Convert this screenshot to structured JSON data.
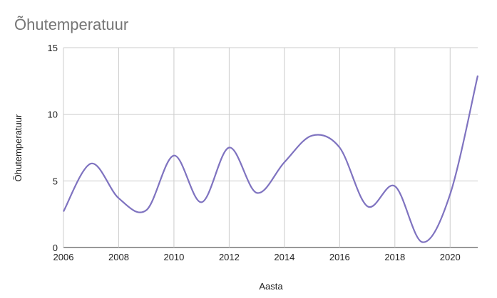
{
  "chart_data": {
    "type": "line",
    "title": "Õhutemperatuur",
    "x_label": "Aasta",
    "y_label": "Õhutemperatuur",
    "x": [
      2006,
      2007,
      2008,
      2009,
      2010,
      2011,
      2012,
      2013,
      2014,
      2015,
      2016,
      2017,
      2018,
      2019,
      2020,
      2021
    ],
    "series": [
      {
        "name": "Õhutemperatuur",
        "color": "#7f73c0",
        "values": [
          2.7,
          6.3,
          3.7,
          2.8,
          6.9,
          3.4,
          7.5,
          4.1,
          6.4,
          8.4,
          7.5,
          3.1,
          4.6,
          0.4,
          4.0,
          12.9
        ]
      }
    ],
    "xlim": [
      2006,
      2021
    ],
    "xticks": [
      2006,
      2008,
      2010,
      2012,
      2014,
      2016,
      2018,
      2020
    ],
    "ylim": [
      0,
      15
    ],
    "yticks": [
      0,
      5,
      10,
      15
    ],
    "grid": true,
    "smooth": true
  }
}
